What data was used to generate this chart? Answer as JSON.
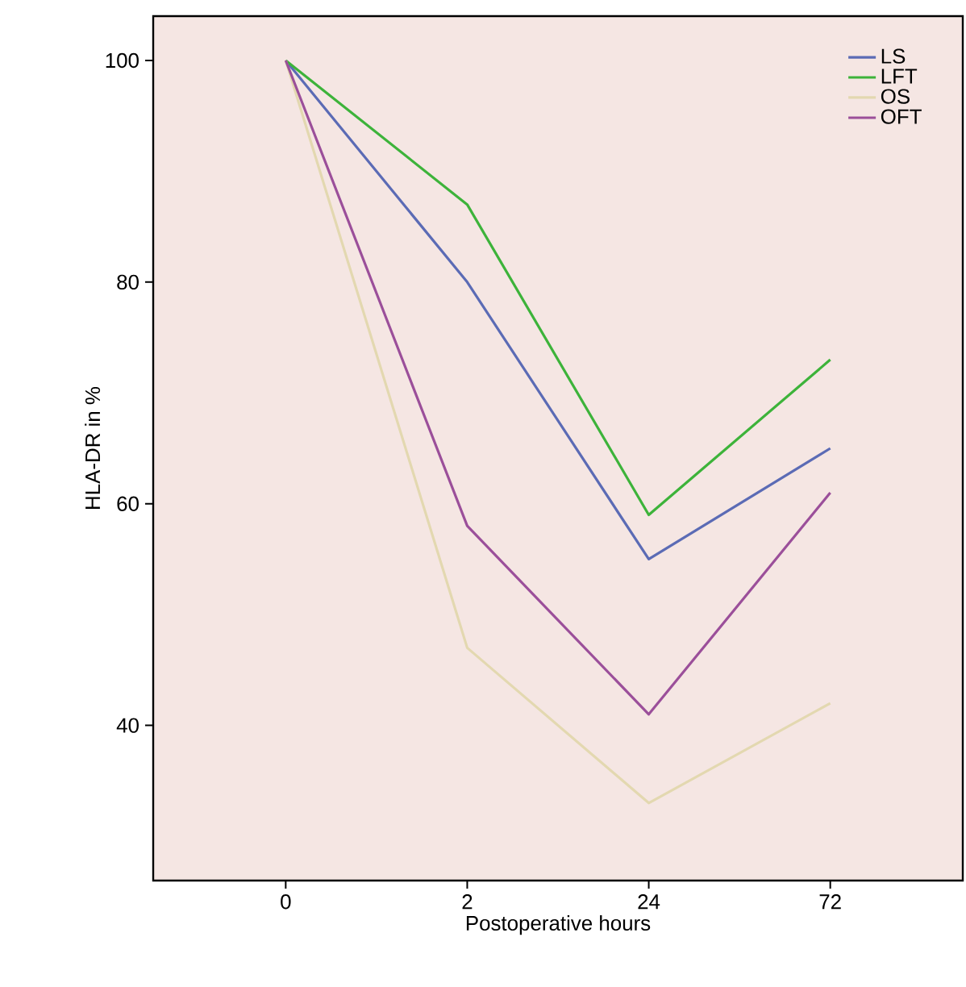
{
  "chart_data": {
    "type": "line",
    "xlabel": "Postoperative hours",
    "ylabel": "HLA-DR in %",
    "categories": [
      "0",
      "2",
      "24",
      "72"
    ],
    "series": [
      {
        "name": "LS",
        "color": "#5b6bb5",
        "values": [
          100,
          80,
          55,
          65
        ]
      },
      {
        "name": "LFT",
        "color": "#3db33a",
        "values": [
          100,
          87,
          59,
          73
        ]
      },
      {
        "name": "OS",
        "color": "#e3d8b0",
        "values": [
          100,
          47,
          33,
          42
        ]
      },
      {
        "name": "OFT",
        "color": "#9b4f9a",
        "values": [
          100,
          58,
          41,
          61
        ]
      }
    ],
    "ylim": [
      26,
      104
    ],
    "yticks": [
      40,
      60,
      80,
      100
    ],
    "legend": "top right",
    "grid": false,
    "marker": "none",
    "line_style": "solid"
  }
}
